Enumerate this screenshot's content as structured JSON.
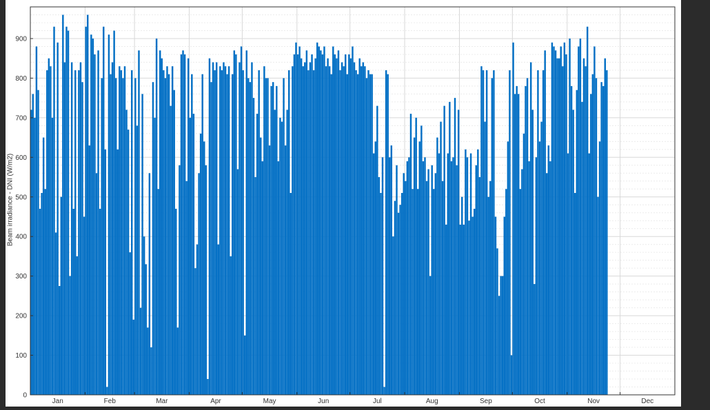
{
  "colors": {
    "bar": "#0470c5",
    "background": "#ffffff",
    "frame": "#2b2b2b",
    "grid_major": "#d8d8d8",
    "grid_minor": "#ececec",
    "axis": "#333333"
  },
  "chart_data": {
    "type": "bar",
    "title": "",
    "xlabel": "",
    "ylabel": "Beam irradiance - DNI (W/m2)",
    "ylim": [
      0,
      980
    ],
    "xlim_days": [
      1,
      365
    ],
    "grid": true,
    "legend": "none",
    "yticks": [
      0,
      100,
      200,
      300,
      400,
      500,
      600,
      700,
      800,
      900
    ],
    "months": [
      "Jan",
      "Feb",
      "Mar",
      "Apr",
      "May",
      "Jun",
      "Jul",
      "Aug",
      "Sep",
      "Oct",
      "Nov",
      "Dec"
    ],
    "series": [
      {
        "values": [
          720,
          760,
          700,
          880,
          770,
          470,
          510,
          650,
          520,
          820,
          850,
          830,
          700,
          930,
          410,
          890,
          275,
          500,
          960,
          840,
          930,
          920,
          300,
          840,
          470,
          820,
          350,
          820,
          840,
          790,
          450,
          930,
          960,
          630,
          910,
          900,
          860,
          560,
          870,
          470,
          800,
          930,
          620,
          20,
          910,
          810,
          840,
          920,
          800,
          620,
          830,
          820,
          800,
          830,
          720,
          670,
          360,
          820,
          190,
          800,
          680,
          870,
          220,
          760,
          400,
          330,
          170,
          560,
          120,
          790,
          700,
          900,
          520,
          870,
          850,
          820,
          800,
          830,
          810,
          730,
          830,
          770,
          470,
          170,
          580,
          860,
          870,
          860,
          540,
          850,
          700,
          810,
          710,
          320,
          380,
          560,
          660,
          810,
          640,
          580,
          40,
          850,
          790,
          840,
          820,
          840,
          380,
          830,
          820,
          840,
          830,
          810,
          830,
          350,
          810,
          870,
          860,
          570,
          840,
          880,
          820,
          150,
          870,
          800,
          790,
          840,
          750,
          550,
          710,
          820,
          650,
          590,
          830,
          800,
          800,
          630,
          780,
          790,
          720,
          780,
          590,
          700,
          690,
          800,
          630,
          720,
          820,
          510,
          830,
          860,
          890,
          860,
          880,
          850,
          830,
          840,
          870,
          820,
          840,
          860,
          820,
          850,
          890,
          880,
          870,
          860,
          880,
          830,
          850,
          830,
          810,
          880,
          860,
          850,
          870,
          820,
          840,
          830,
          860,
          810,
          860,
          850,
          880,
          840,
          820,
          810,
          850,
          830,
          840,
          830,
          800,
          820,
          810,
          810,
          610,
          640,
          730,
          550,
          510,
          600,
          20,
          820,
          810,
          600,
          630,
          400,
          490,
          580,
          460,
          480,
          510,
          560,
          540,
          590,
          600,
          710,
          520,
          650,
          700,
          520,
          640,
          680,
          590,
          600,
          540,
          570,
          300,
          580,
          520,
          560,
          650,
          610,
          690,
          540,
          730,
          430,
          610,
          740,
          590,
          600,
          750,
          580,
          720,
          430,
          500,
          430,
          620,
          600,
          440,
          610,
          450,
          470,
          580,
          620,
          550,
          830,
          820,
          690,
          820,
          500,
          540,
          800,
          820,
          450,
          370,
          250,
          300,
          300,
          450,
          520,
          640,
          820,
          100,
          890,
          760,
          780,
          760,
          520,
          570,
          660,
          780,
          800,
          590,
          840,
          720,
          280,
          600,
          820,
          640,
          690,
          820,
          870,
          560,
          630,
          590,
          890,
          880,
          870,
          850,
          850,
          880,
          830,
          890,
          860,
          610,
          900,
          780,
          720,
          510,
          770,
          880,
          900,
          740,
          850,
          830,
          930,
          610,
          760,
          810,
          880,
          800,
          500,
          640,
          790,
          780,
          850,
          820
        ]
      }
    ]
  }
}
